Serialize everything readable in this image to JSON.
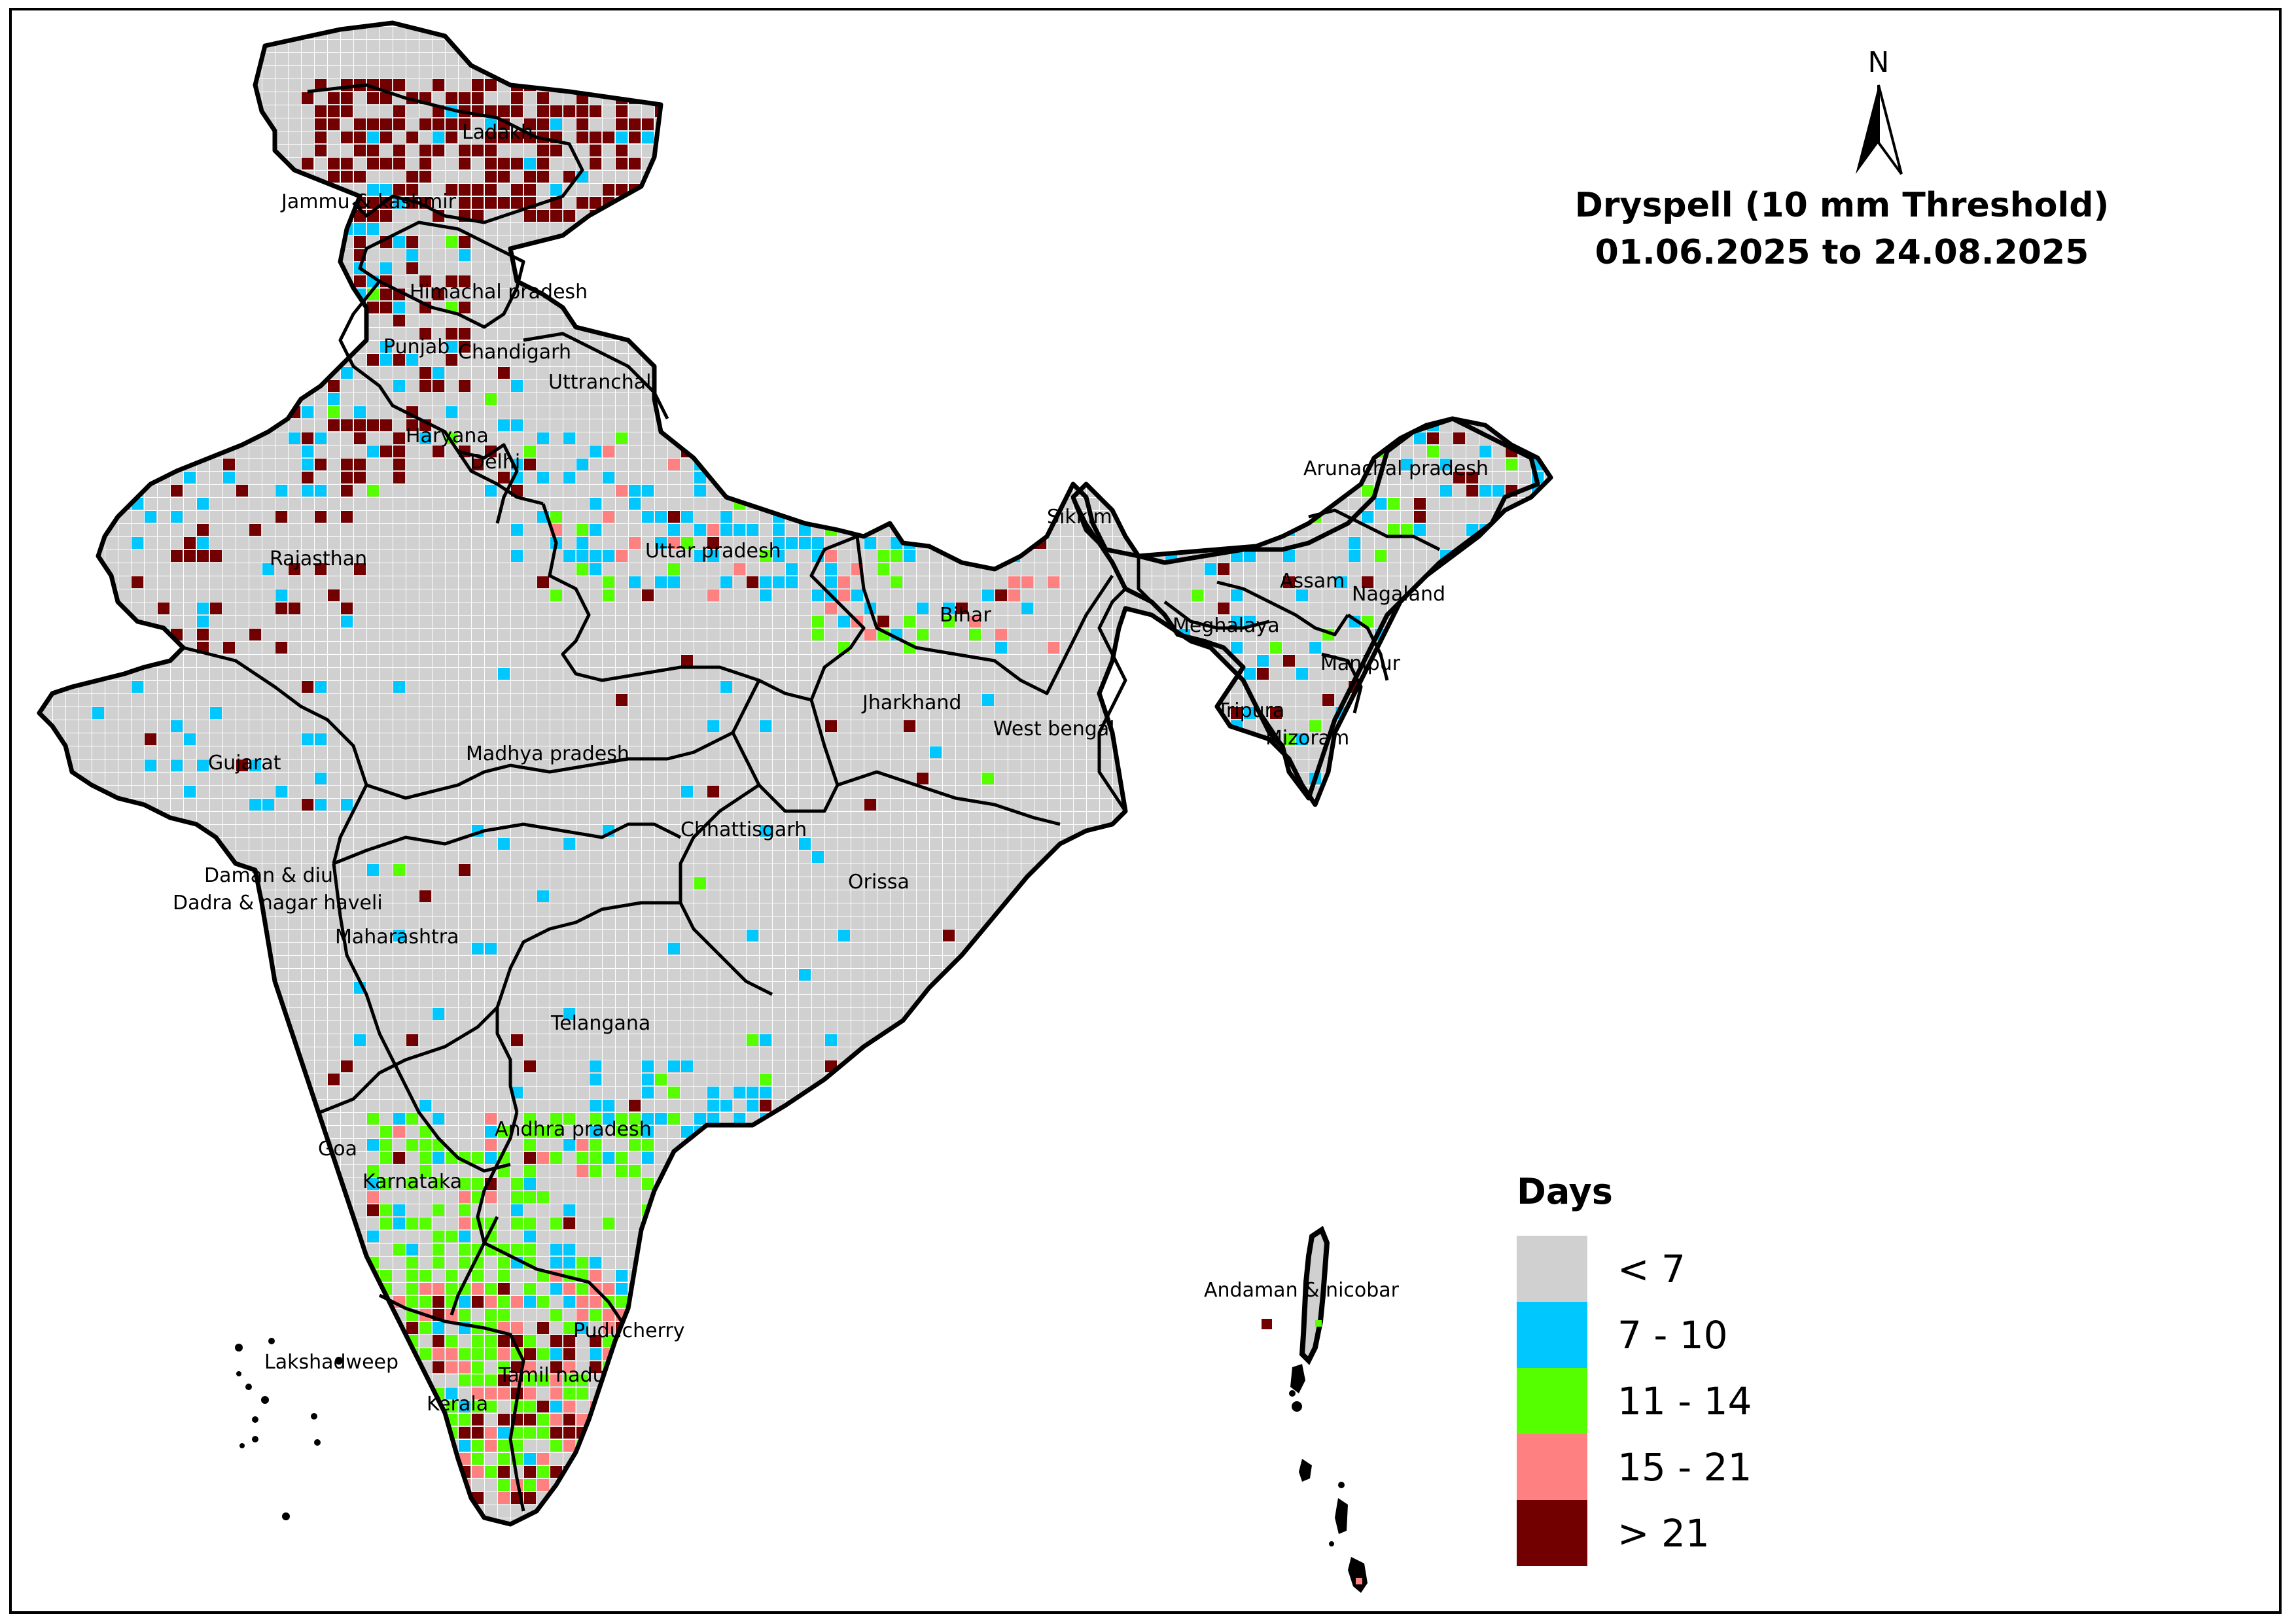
{
  "title": {
    "line1": "Dryspell (10 mm Threshold)",
    "line2": "01.06.2025 to 24.08.2025"
  },
  "north_arrow": {
    "label": "N"
  },
  "legend": {
    "title": "Days",
    "items": [
      {
        "label": "< 7",
        "color": "#d0d0d0"
      },
      {
        "label": "7 - 10",
        "color": "#00c8ff"
      },
      {
        "label": "11 - 14",
        "color": "#55ff00"
      },
      {
        "label": "15 - 21",
        "color": "#ff8080"
      },
      {
        "label": "> 21",
        "color": "#730000"
      }
    ]
  },
  "state_labels": [
    "Ladakh",
    "Jammu & kashmir",
    "Himachal pradesh",
    "Punjab",
    "Chandigarh",
    "Uttranchal",
    "Haryana",
    "Delhi",
    "Rajasthan",
    "Uttar pradesh",
    "Sikkim",
    "Arunachal pradesh",
    "Assam",
    "Nagaland",
    "Meghalaya",
    "Bihar",
    "Manipur",
    "Tripura",
    "Mizoram",
    "Jharkhand",
    "West bengal",
    "Gujarat",
    "Madhya pradesh",
    "Chhattisgarh",
    "Daman & diu",
    "Dadra & nagar haveli",
    "Orissa",
    "Maharashtra",
    "Telangana",
    "Andhra pradesh",
    "Goa",
    "Karnataka",
    "Andaman & nicobar",
    "Puducherry",
    "Lakshadweep",
    "Tamil nadu",
    "Kerala"
  ]
}
